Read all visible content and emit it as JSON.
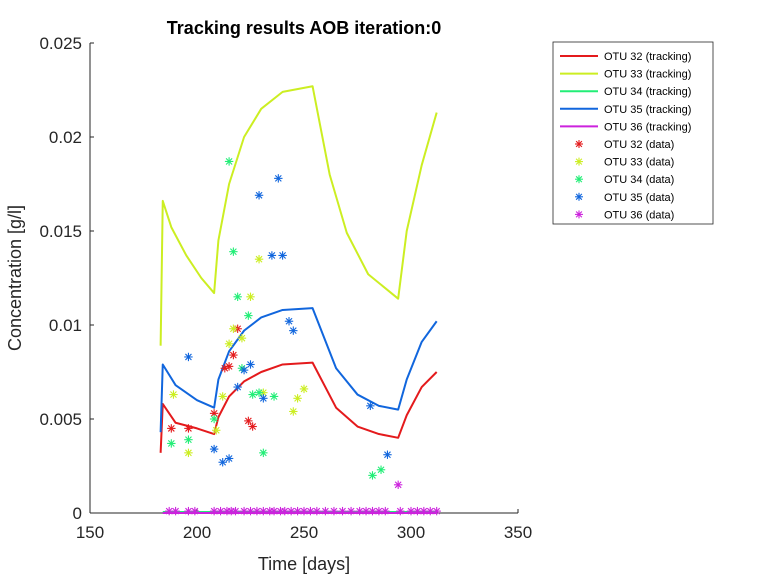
{
  "chart_data": {
    "type": "line",
    "title": "Tracking results AOB iteration:0",
    "xlabel": "Time [days]",
    "ylabel": "Concentration [g/l]",
    "xlim": [
      150,
      350
    ],
    "ylim": [
      0,
      0.025
    ],
    "xticks": [
      150,
      200,
      250,
      300,
      350
    ],
    "yticks": [
      0,
      0.005,
      0.01,
      0.015,
      0.02,
      0.025
    ],
    "xtick_labels": [
      "150",
      "200",
      "250",
      "300",
      "350"
    ],
    "ytick_labels": [
      "0",
      "0.005",
      "0.01",
      "0.015",
      "0.02",
      "0.025"
    ],
    "grid": false,
    "legend_position": "outside-top-right",
    "series": [
      {
        "name": "OTU 32 (tracking)",
        "kind": "line",
        "color": "#e41a1c",
        "points": [
          [
            183,
            0.0032
          ],
          [
            184,
            0.0058
          ],
          [
            190,
            0.0048
          ],
          [
            200,
            0.0045
          ],
          [
            208,
            0.0042
          ],
          [
            210,
            0.0051
          ],
          [
            215,
            0.0062
          ],
          [
            222,
            0.007
          ],
          [
            230,
            0.0075
          ],
          [
            240,
            0.0079
          ],
          [
            254,
            0.008
          ],
          [
            265,
            0.0056
          ],
          [
            275,
            0.0046
          ],
          [
            285,
            0.0042
          ],
          [
            294,
            0.004
          ],
          [
            298,
            0.0052
          ],
          [
            305,
            0.0067
          ],
          [
            312,
            0.0075
          ]
        ]
      },
      {
        "name": "OTU 33 (tracking)",
        "kind": "line",
        "color": "#ccee22",
        "points": [
          [
            183,
            0.0089
          ],
          [
            184,
            0.0166
          ],
          [
            188,
            0.0152
          ],
          [
            195,
            0.0137
          ],
          [
            202,
            0.0125
          ],
          [
            208,
            0.0117
          ],
          [
            210,
            0.0145
          ],
          [
            215,
            0.0175
          ],
          [
            222,
            0.02
          ],
          [
            230,
            0.0215
          ],
          [
            240,
            0.0224
          ],
          [
            254,
            0.0227
          ],
          [
            262,
            0.018
          ],
          [
            270,
            0.0149
          ],
          [
            280,
            0.0127
          ],
          [
            294,
            0.0114
          ],
          [
            298,
            0.015
          ],
          [
            305,
            0.0185
          ],
          [
            312,
            0.0213
          ]
        ]
      },
      {
        "name": "OTU 34 (tracking)",
        "kind": "line",
        "color": "#22ee77",
        "points": [
          [
            184,
            5e-05
          ],
          [
            312,
            5e-05
          ]
        ]
      },
      {
        "name": "OTU 35 (tracking)",
        "kind": "line",
        "color": "#1166dd",
        "points": [
          [
            183,
            0.0043
          ],
          [
            184,
            0.0079
          ],
          [
            190,
            0.0068
          ],
          [
            200,
            0.006
          ],
          [
            208,
            0.0056
          ],
          [
            210,
            0.0071
          ],
          [
            215,
            0.0086
          ],
          [
            222,
            0.0097
          ],
          [
            230,
            0.0104
          ],
          [
            240,
            0.0108
          ],
          [
            254,
            0.0109
          ],
          [
            265,
            0.0077
          ],
          [
            275,
            0.0063
          ],
          [
            285,
            0.0057
          ],
          [
            294,
            0.0055
          ],
          [
            298,
            0.0071
          ],
          [
            305,
            0.0091
          ],
          [
            312,
            0.0102
          ]
        ]
      },
      {
        "name": "OTU 36 (tracking)",
        "kind": "line",
        "color": "#cc22dd",
        "points": [
          [
            184,
            0.0
          ],
          [
            312,
            0.0
          ]
        ]
      },
      {
        "name": "OTU 32 (data)",
        "kind": "scatter",
        "color": "#e41a1c",
        "points": [
          [
            188,
            0.0045
          ],
          [
            196,
            0.0045
          ],
          [
            208,
            0.0053
          ],
          [
            213,
            0.0077
          ],
          [
            215,
            0.0078
          ],
          [
            217,
            0.0084
          ],
          [
            219,
            0.0098
          ],
          [
            224,
            0.0049
          ],
          [
            226,
            0.0046
          ]
        ]
      },
      {
        "name": "OTU 33 (data)",
        "kind": "scatter",
        "color": "#ccee22",
        "points": [
          [
            189,
            0.0063
          ],
          [
            196,
            0.0032
          ],
          [
            209,
            0.0044
          ],
          [
            212,
            0.0062
          ],
          [
            215,
            0.009
          ],
          [
            217,
            0.0098
          ],
          [
            221,
            0.0093
          ],
          [
            225,
            0.0115
          ],
          [
            229,
            0.0135
          ],
          [
            231,
            0.0064
          ],
          [
            245,
            0.0054
          ],
          [
            247,
            0.0061
          ],
          [
            250,
            0.0066
          ]
        ]
      },
      {
        "name": "OTU 34 (data)",
        "kind": "scatter",
        "color": "#22ee77",
        "points": [
          [
            188,
            0.0037
          ],
          [
            196,
            0.0039
          ],
          [
            208,
            0.005
          ],
          [
            215,
            0.0187
          ],
          [
            217,
            0.0139
          ],
          [
            219,
            0.0115
          ],
          [
            221,
            0.0077
          ],
          [
            224,
            0.0105
          ],
          [
            226,
            0.0063
          ],
          [
            229,
            0.0064
          ],
          [
            231,
            0.0032
          ],
          [
            236,
            0.0062
          ],
          [
            282,
            0.002
          ],
          [
            286,
            0.0023
          ]
        ]
      },
      {
        "name": "OTU 35 (data)",
        "kind": "scatter",
        "color": "#1166dd",
        "points": [
          [
            196,
            0.0083
          ],
          [
            208,
            0.0034
          ],
          [
            212,
            0.0027
          ],
          [
            215,
            0.0029
          ],
          [
            219,
            0.0067
          ],
          [
            222,
            0.0076
          ],
          [
            225,
            0.0079
          ],
          [
            229,
            0.0169
          ],
          [
            231,
            0.0061
          ],
          [
            235,
            0.0137
          ],
          [
            238,
            0.0178
          ],
          [
            240,
            0.0137
          ],
          [
            243,
            0.0102
          ],
          [
            245,
            0.0097
          ],
          [
            281,
            0.0057
          ],
          [
            289,
            0.0031
          ]
        ]
      },
      {
        "name": "OTU 36 (data)",
        "kind": "scatter",
        "color": "#cc22dd",
        "points": [
          [
            187,
            0.0001
          ],
          [
            190,
            0.0001
          ],
          [
            196,
            0.0001
          ],
          [
            199,
            0.0001
          ],
          [
            208,
            0.0001
          ],
          [
            211,
            0.0001
          ],
          [
            214,
            0.0001
          ],
          [
            216,
            0.0001
          ],
          [
            218,
            0.0001
          ],
          [
            222,
            0.0001
          ],
          [
            225,
            0.0001
          ],
          [
            228,
            0.0001
          ],
          [
            231,
            0.0001
          ],
          [
            234,
            0.0001
          ],
          [
            236,
            0.0001
          ],
          [
            239,
            0.0001
          ],
          [
            241,
            0.0001
          ],
          [
            244,
            0.0001
          ],
          [
            247,
            0.0001
          ],
          [
            250,
            0.0001
          ],
          [
            253,
            0.0001
          ],
          [
            256,
            0.0001
          ],
          [
            260,
            0.0001
          ],
          [
            264,
            0.0001
          ],
          [
            268,
            0.0001
          ],
          [
            272,
            0.0001
          ],
          [
            276,
            0.0001
          ],
          [
            279,
            0.0001
          ],
          [
            282,
            0.0001
          ],
          [
            285,
            0.0001
          ],
          [
            288,
            0.0001
          ],
          [
            294,
            0.0015
          ],
          [
            295,
            0.0001
          ],
          [
            300,
            0.0001
          ],
          [
            303,
            0.0001
          ],
          [
            306,
            0.0001
          ],
          [
            309,
            0.0001
          ],
          [
            312,
            0.0001
          ]
        ]
      }
    ]
  }
}
